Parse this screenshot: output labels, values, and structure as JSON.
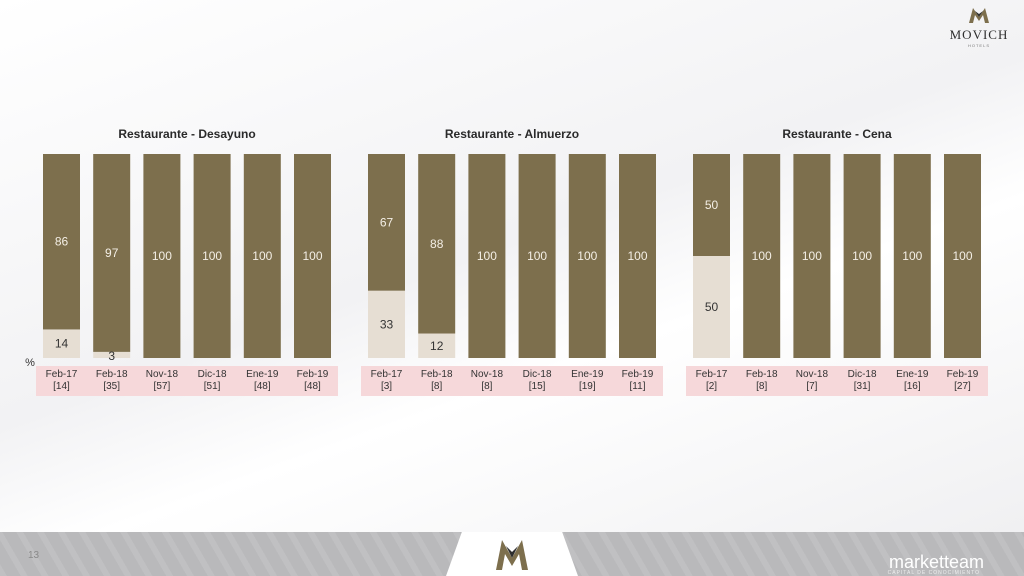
{
  "brand": {
    "name": "MOVICH",
    "sub": "HOTELS"
  },
  "unit_label": "%",
  "footer": {
    "page_number": "13",
    "brand": "marketteam",
    "brand_sub": "CAPITAL DE CONOCIMIENTO"
  },
  "colors": {
    "main": "#7d6f4d",
    "secondary": "#e6ded3",
    "label_band": "#f6d8da"
  },
  "chart_data": [
    {
      "type": "bar",
      "title": "Restaurante - Desayuno",
      "categories": [
        "Feb-17",
        "Feb-18",
        "Nov-18",
        "Dic-18",
        "Ene-19",
        "Feb-19"
      ],
      "counts": [
        "[14]",
        "[35]",
        "[57]",
        "[51]",
        "[48]",
        "[48]"
      ],
      "series": [
        {
          "values": [
            86,
            97,
            100,
            100,
            100,
            100
          ]
        },
        {
          "values": [
            14,
            3,
            0,
            0,
            0,
            0
          ]
        }
      ],
      "ylim": [
        0,
        100
      ]
    },
    {
      "type": "bar",
      "title": "Restaurante - Almuerzo",
      "categories": [
        "Feb-17",
        "Feb-18",
        "Nov-18",
        "Dic-18",
        "Ene-19",
        "Feb-19"
      ],
      "counts": [
        "[3]",
        "[8]",
        "[8]",
        "[15]",
        "[19]",
        "[11]"
      ],
      "series": [
        {
          "values": [
            67,
            88,
            100,
            100,
            100,
            100
          ]
        },
        {
          "values": [
            33,
            12,
            0,
            0,
            0,
            0
          ]
        }
      ],
      "ylim": [
        0,
        100
      ]
    },
    {
      "type": "bar",
      "title": "Restaurante - Cena",
      "categories": [
        "Feb-17",
        "Feb-18",
        "Nov-18",
        "Dic-18",
        "Ene-19",
        "Feb-19"
      ],
      "counts": [
        "[2]",
        "[8]",
        "[7]",
        "[31]",
        "[16]",
        "[27]"
      ],
      "series": [
        {
          "values": [
            50,
            100,
            100,
            100,
            100,
            100
          ]
        },
        {
          "values": [
            50,
            0,
            0,
            0,
            0,
            0
          ]
        }
      ],
      "ylim": [
        0,
        100
      ]
    }
  ]
}
